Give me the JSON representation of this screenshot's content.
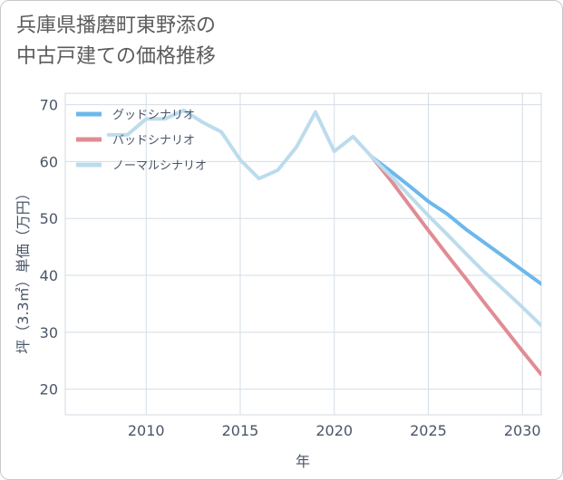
{
  "title_line1": "兵庫県播磨町東野添の",
  "title_line2": "中古戸建ての価格推移",
  "chart_data": {
    "type": "line",
    "xlabel": "年",
    "ylabel": "坪（3.3㎡）単価（万円）",
    "xlim": [
      2005.7,
      2031
    ],
    "ylim": [
      15.5,
      72
    ],
    "xticks": [
      2010,
      2015,
      2020,
      2025,
      2030
    ],
    "yticks": [
      20,
      30,
      40,
      50,
      60,
      70
    ],
    "grid": true,
    "legend_position": "top-left",
    "series": [
      {
        "name": "グッドシナリオ",
        "color": "#6cb8ec",
        "x": [
          2022,
          2023,
          2024,
          2025,
          2026,
          2027,
          2028,
          2029,
          2030,
          2031
        ],
        "y": [
          60.8,
          58.3,
          55.7,
          53.0,
          50.8,
          48.1,
          45.7,
          43.3,
          40.9,
          38.5
        ]
      },
      {
        "name": "バッドシナリオ",
        "color": "#e08c94",
        "x": [
          2022,
          2023,
          2024,
          2025,
          2026,
          2027,
          2028,
          2029,
          2030,
          2031
        ],
        "y": [
          60.8,
          56.7,
          52.3,
          47.9,
          43.6,
          39.4,
          35.1,
          30.9,
          26.7,
          22.6
        ]
      },
      {
        "name": "ノーマルシナリオ",
        "color": "#bcdcec",
        "x": [
          2008,
          2009,
          2010,
          2011,
          2012,
          2013,
          2014,
          2015,
          2016,
          2017,
          2018,
          2019,
          2020,
          2021,
          2022,
          2023,
          2024,
          2025,
          2026,
          2027,
          2028,
          2029,
          2030,
          2031
        ],
        "y": [
          64.7,
          64.7,
          67.5,
          67.5,
          69.0,
          66.9,
          65.2,
          60.3,
          57.0,
          58.5,
          62.6,
          68.7,
          61.8,
          64.4,
          60.8,
          57.5,
          54.0,
          50.5,
          47.2,
          43.8,
          40.5,
          37.5,
          34.4,
          31.2
        ]
      }
    ]
  }
}
